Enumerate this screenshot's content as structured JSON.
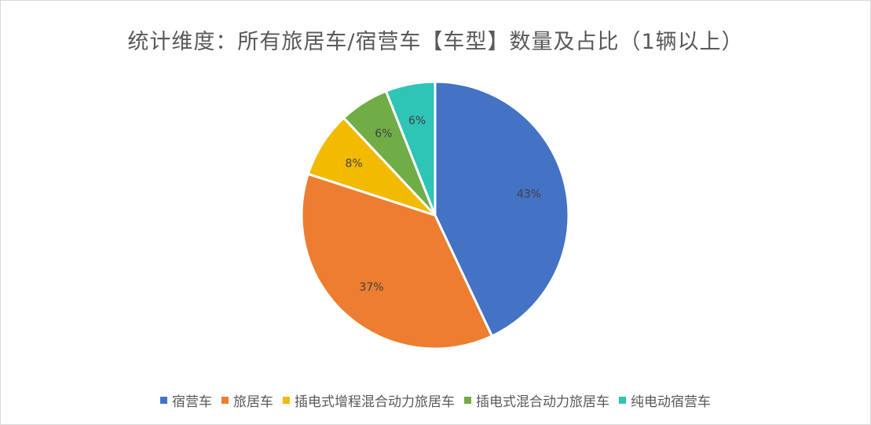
{
  "chart_data": {
    "type": "pie",
    "title": "统计维度：所有旅居车/宿营车【车型】数量及占比（1辆以上）",
    "categories": [
      "宿营车",
      "旅居车",
      "插电式增程混合动力旅居车",
      "插电式混合动力旅居车",
      "纯电动宿营车"
    ],
    "values": [
      43,
      37,
      8,
      6,
      6
    ],
    "labels": [
      "43%",
      "37%",
      "8%",
      "6%",
      "6%"
    ],
    "colors": [
      "#4472C4",
      "#ED7D31",
      "#F2BA00",
      "#70AD47",
      "#2EC4B6"
    ],
    "legend_position": "bottom"
  }
}
